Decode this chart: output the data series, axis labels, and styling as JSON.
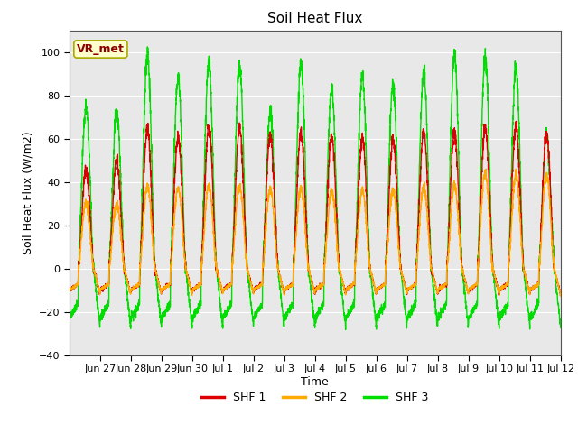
{
  "title": "Soil Heat Flux",
  "xlabel": "Time",
  "ylabel": "Soil Heat Flux (W/m2)",
  "ylim": [
    -40,
    110
  ],
  "yticks": [
    -40,
    -20,
    0,
    20,
    40,
    60,
    80,
    100
  ],
  "fig_bg_color": "#ffffff",
  "plot_bg_color": "#e8e8e8",
  "grid_color": "#ffffff",
  "shf1_color": "#dd0000",
  "shf2_color": "#ffaa00",
  "shf3_color": "#00dd00",
  "legend_labels": [
    "SHF 1",
    "SHF 2",
    "SHF 3"
  ],
  "annotation_text": "VR_met",
  "annotation_color": "#8b0000",
  "annotation_bg": "#ffffcc",
  "annotation_edge": "#aaaa00",
  "tick_positions": [
    1,
    2,
    3,
    4,
    5,
    6,
    7,
    8,
    9,
    10,
    11,
    12,
    13,
    14,
    15,
    16
  ],
  "tick_labels": [
    "Jun 27",
    "Jun 28",
    "Jun 29",
    "Jun 30",
    "Jul 1",
    "Jul 2",
    "Jul 3",
    "Jul 4",
    "Jul 5",
    "Jul 6",
    "Jul 7",
    "Jul 8",
    "Jul 9",
    "Jul 10",
    "Jul 11",
    "Jul 12"
  ],
  "xlim": [
    0,
    16
  ],
  "peaks_shf1": [
    45,
    50,
    64,
    60,
    65,
    65,
    62,
    63,
    61,
    60,
    59,
    64,
    63,
    65,
    66,
    62
  ],
  "peaks_shf2": [
    30,
    30,
    38,
    37,
    38,
    38,
    37,
    37,
    36,
    36,
    36,
    38,
    38,
    44,
    43,
    43
  ],
  "peaks_shf3": [
    75,
    73,
    98,
    88,
    95,
    94,
    72,
    95,
    83,
    89,
    85,
    91,
    99,
    98,
    93,
    62
  ],
  "trough_shf1": -10,
  "trough_shf2": -10,
  "trough_shf3": -23,
  "linewidth": 1.0,
  "title_fontsize": 11,
  "label_fontsize": 9,
  "tick_fontsize": 8,
  "legend_fontsize": 9
}
